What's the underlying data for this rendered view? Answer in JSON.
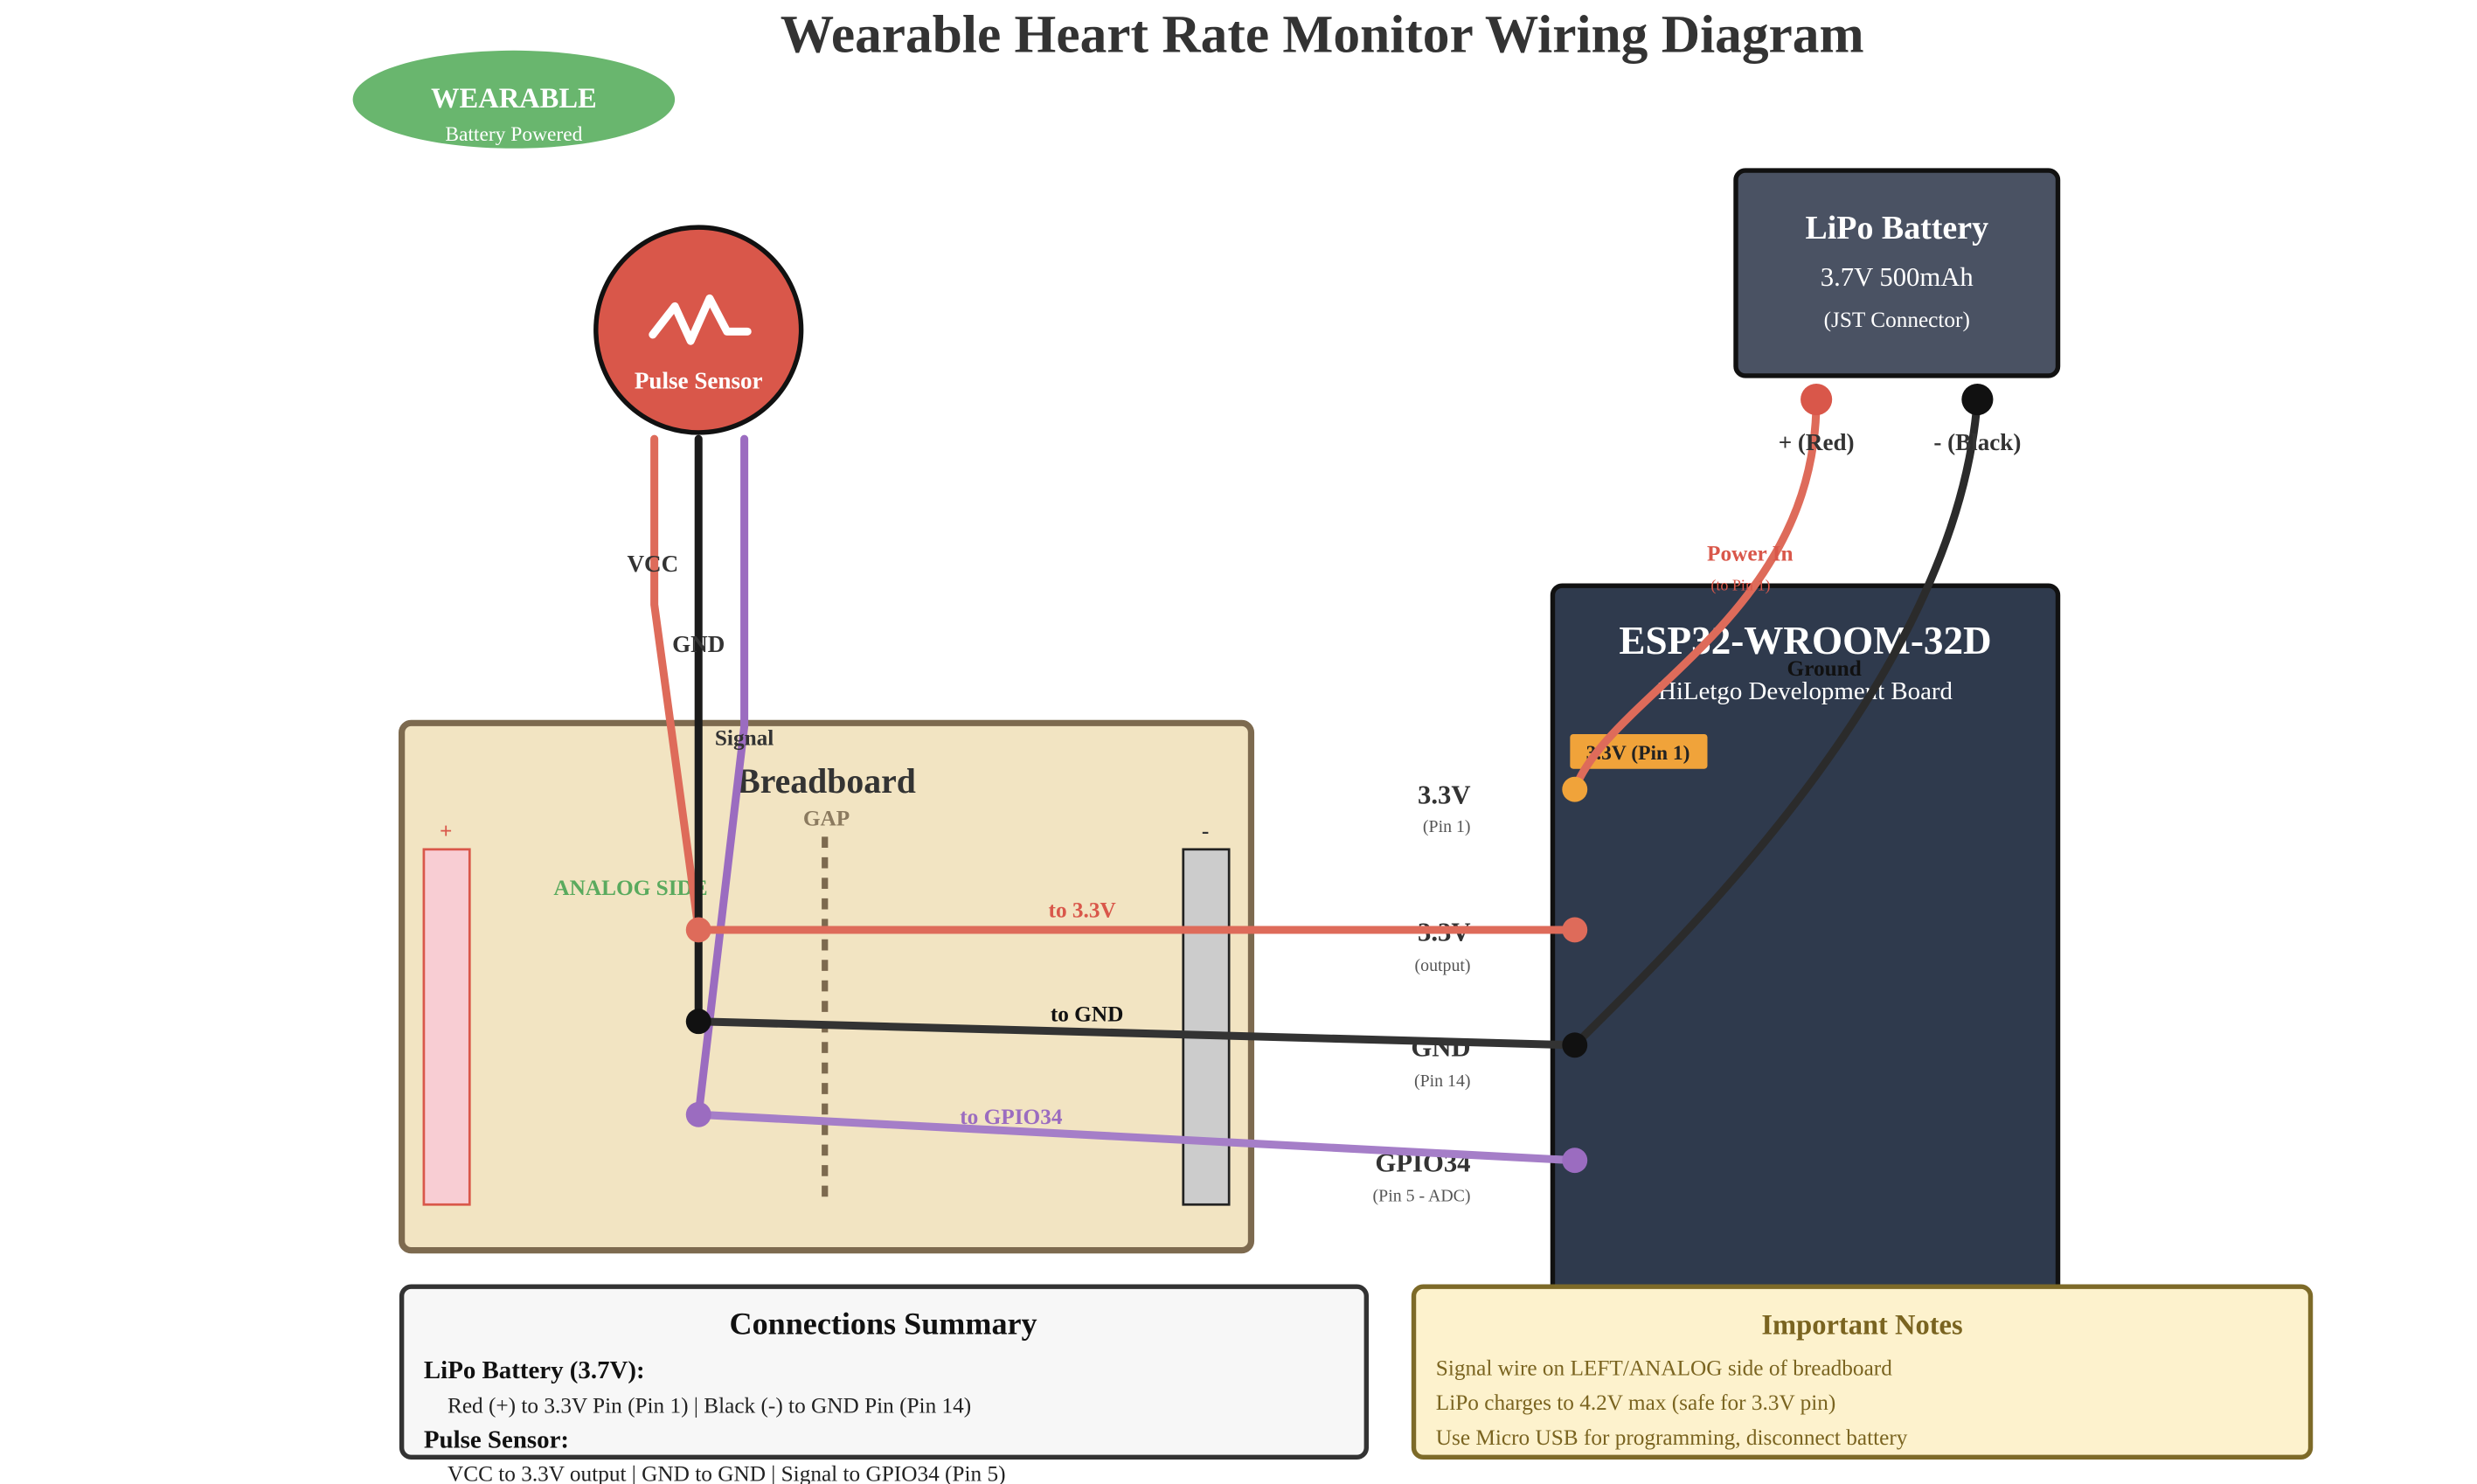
{
  "title": "Wearable Heart Rate Monitor Wiring Diagram",
  "badge": {
    "title": "WEARABLE",
    "subtitle": "Battery Powered"
  },
  "battery": {
    "title": "LiPo Battery",
    "spec": "3.7V 500mAh",
    "connector": "(JST Connector)",
    "pos_label": "+ (Red)",
    "neg_label": "- (Black)"
  },
  "sensor": {
    "label": "Pulse Sensor"
  },
  "sensor_wires": {
    "vcc": "VCC",
    "gnd": "GND",
    "signal": "Signal"
  },
  "breadboard": {
    "title": "Breadboard",
    "plus": "+",
    "minus": "-",
    "gap": "GAP",
    "analog_side": "ANALOG SIDE"
  },
  "esp32": {
    "title": "ESP32-WROOM-32D",
    "subtitle": "HiLetgo Development Board",
    "pin1_tag": "3.3V (Pin 1)"
  },
  "pins": [
    {
      "name": "3.3V",
      "sub": "(Pin 1)"
    },
    {
      "name": "3.3V",
      "sub": "(output)"
    },
    {
      "name": "GND",
      "sub": "(Pin 14)"
    },
    {
      "name": "GPIO34",
      "sub": "(Pin 5 - ADC)"
    }
  ],
  "wire_labels": {
    "power_in": "Power In",
    "power_in_sub": "(to Pin 1)",
    "ground": "Ground",
    "to_33v": "to 3.3V",
    "to_gnd": "to GND",
    "to_gpio34": "to GPIO34"
  },
  "summary": {
    "title": "Connections Summary",
    "battery_heading": "LiPo Battery (3.7V):",
    "battery_line": "Red (+) to 3.3V Pin (Pin 1) | Black (-) to GND Pin (Pin 14)",
    "sensor_heading": "Pulse Sensor:",
    "sensor_line": "VCC to 3.3V output | GND to GND | Signal to GPIO34 (Pin 5)"
  },
  "notes": {
    "title": "Important Notes",
    "lines": [
      "Signal wire on LEFT/ANALOG side of breadboard",
      "LiPo charges to 4.2V max (safe for 3.3V pin)",
      "Use Micro USB for programming, disconnect battery"
    ]
  },
  "colors": {
    "red_wire": "#de6b5a",
    "black_wire": "#1b1b1b",
    "purple_wire": "#9b6cc0",
    "esp_body": "#2f3a4d",
    "battery_body": "#4a5263",
    "breadboard_fill": "#f2e4c2",
    "breadboard_border": "#7d6a4f",
    "badge_green": "#69b66e",
    "sensor_red": "#d9574a",
    "pin_orange": "#f0a33a"
  }
}
